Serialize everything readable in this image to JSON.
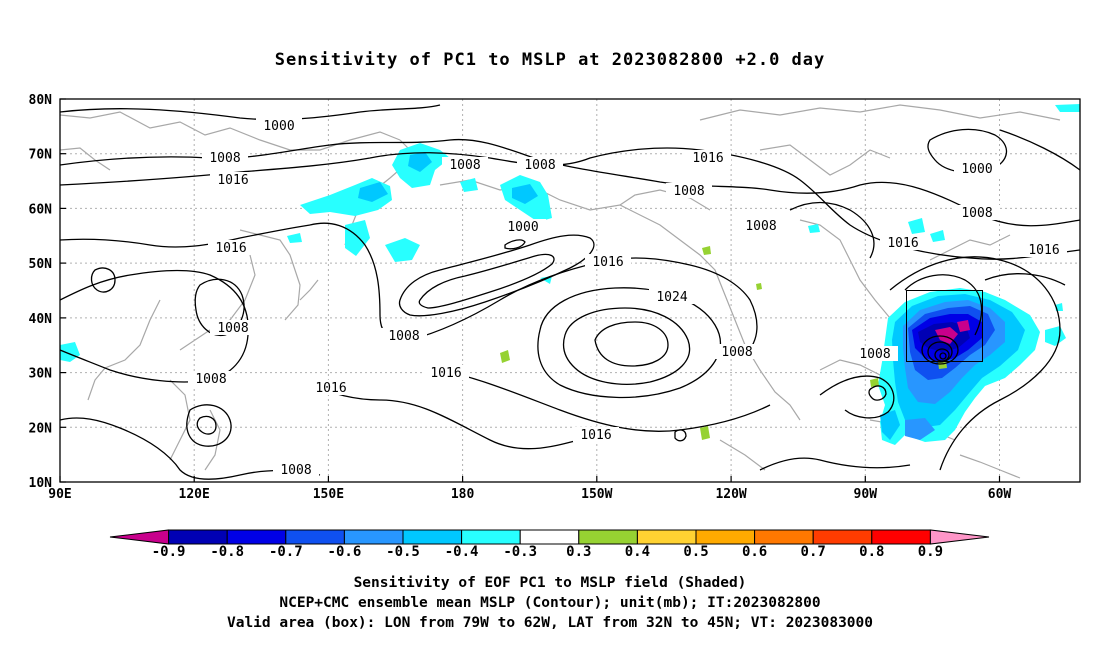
{
  "title": "Sensitivity of PC1 to MSLP at 2023082800 +2.0 day",
  "lat_labels": [
    "80N",
    "70N",
    "60N",
    "50N",
    "40N",
    "30N",
    "20N",
    "10N"
  ],
  "lon_labels": [
    "90E",
    "120E",
    "150E",
    "180",
    "150W",
    "120W",
    "90W",
    "60W"
  ],
  "contour_labels": [
    "1000",
    "1008",
    "1008",
    "1008",
    "1016",
    "1016",
    "1008",
    "1016",
    "1000",
    "1000",
    "1008",
    "1008",
    "1016",
    "1016",
    "1016",
    "1008",
    "1024",
    "1008",
    "1008",
    "1016",
    "1016",
    "1016",
    "1008",
    "1008",
    "1008"
  ],
  "colorbar": {
    "labels": [
      "-0.9",
      "-0.8",
      "-0.7",
      "-0.6",
      "-0.5",
      "-0.4",
      "-0.3",
      "0.3",
      "0.4",
      "0.5",
      "0.6",
      "0.7",
      "0.8",
      "0.9"
    ],
    "colors": [
      "#c8008c",
      "#0000b4",
      "#0000e6",
      "#0f50f0",
      "#2896ff",
      "#00c8ff",
      "#28ffff",
      "#ffffff",
      "#96d232",
      "#ffd232",
      "#ffaa00",
      "#ff7800",
      "#ff3c00",
      "#ff0000",
      "#ff96c8"
    ]
  },
  "valid_box": {
    "lon_west": "79W",
    "lon_east": "62W",
    "lat_south": "32N",
    "lat_north": "45N"
  },
  "captions": [
    "Sensitivity of EOF PC1 to MSLP field (Shaded)",
    "NCEP+CMC ensemble mean MSLP (Contour); unit(mb); IT:2023082800",
    "Valid area (box): LON from 79W to 62W, LAT from 32N to 45N; VT: 2023083000"
  ]
}
